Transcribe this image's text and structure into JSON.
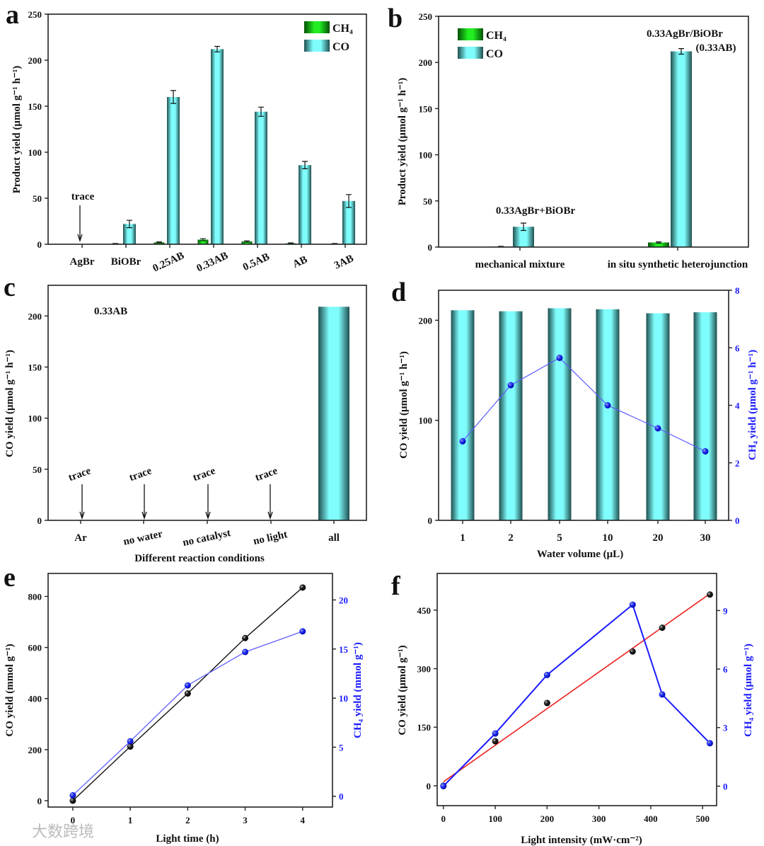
{
  "watermark": "大数跨境",
  "colors": {
    "co_bar": "#7ffcfc",
    "co_edge": "#1f4f4f",
    "ch4_bar": "#22dd22",
    "ch4_edge": "#055005",
    "blue": "#1a1aff",
    "fit": "#ee2222",
    "black": "#111111"
  },
  "chart_data": [
    {
      "panel": "a",
      "type": "bar",
      "categories": [
        "AgBr",
        "BiOBr",
        "0.25AB",
        "0.33AB",
        "0.5AB",
        "AB",
        "3AB"
      ],
      "series": [
        {
          "name": "CH4",
          "legend": "CH₄",
          "values": [
            0,
            0.5,
            2,
            5,
            3,
            1,
            0.5
          ],
          "errors": [
            0,
            0.3,
            0.5,
            1,
            0.7,
            0.5,
            0.3
          ]
        },
        {
          "name": "CO",
          "legend": "CO",
          "values": [
            0,
            22,
            160,
            212,
            144,
            86,
            47
          ],
          "errors": [
            0,
            4,
            7,
            3,
            5,
            4,
            7
          ]
        }
      ],
      "ylabel": "Product yield (μmol g⁻¹ h⁻¹)",
      "xlabel": "",
      "ylim": [
        0,
        250
      ],
      "yticks": [
        0,
        50,
        100,
        150,
        200,
        250
      ],
      "annotations": [
        "trace"
      ],
      "legend_position": "top-right"
    },
    {
      "panel": "b",
      "type": "bar",
      "categories": [
        "mechanical mixture",
        "in situ synthetic heterojunction"
      ],
      "series": [
        {
          "name": "CH4",
          "legend": "CH₄",
          "values": [
            0.5,
            5
          ],
          "errors": [
            0.3,
            0.7
          ]
        },
        {
          "name": "CO",
          "legend": "CO",
          "values": [
            22,
            212
          ],
          "errors": [
            4,
            3
          ]
        }
      ],
      "ylabel": "Product yield (μmol g⁻¹ h⁻¹)",
      "xlabel": "",
      "ylim": [
        0,
        250
      ],
      "yticks": [
        0,
        50,
        100,
        150,
        200,
        250
      ],
      "annotations": [
        "0.33AgBr+BiOBr",
        "0.33AgBr/BiOBr",
        "(0.33AB)"
      ],
      "legend_position": "top-left"
    },
    {
      "panel": "c",
      "type": "bar",
      "categories": [
        "Ar",
        "no water",
        "no catalyst",
        "no light",
        "all"
      ],
      "series": [
        {
          "name": "CO",
          "values": [
            0,
            0,
            0,
            0,
            209
          ]
        }
      ],
      "ylabel": "CO yield (μmol g⁻¹ h⁻¹)",
      "xlabel": "Different reaction conditions",
      "ylim": [
        0,
        230
      ],
      "yticks": [
        0,
        50,
        100,
        150,
        200
      ],
      "annotations": [
        "0.33AB",
        "trace",
        "trace",
        "trace",
        "trace"
      ]
    },
    {
      "panel": "d",
      "type": "bar",
      "categories": [
        "1",
        "2",
        "5",
        "10",
        "20",
        "30"
      ],
      "series": [
        {
          "name": "CO",
          "axis": "left",
          "type": "bar",
          "values": [
            210,
            209,
            212,
            211,
            207,
            208
          ]
        },
        {
          "name": "CH4",
          "axis": "right",
          "type": "line",
          "values": [
            2.75,
            4.7,
            5.65,
            4.0,
            3.2,
            2.4
          ]
        }
      ],
      "xlabel": "Water volume (μL)",
      "ylabel": "CO yield (μmol g⁻¹ h⁻¹)",
      "y2label": "CH₄ yield (μmol g⁻¹ h⁻¹)",
      "ylim": [
        0,
        230
      ],
      "yticks": [
        0,
        100,
        200
      ],
      "y2lim": [
        0,
        8
      ],
      "y2ticks": [
        0,
        2,
        4,
        6,
        8
      ]
    },
    {
      "panel": "e",
      "type": "line",
      "x": [
        0,
        1,
        2,
        3,
        4
      ],
      "series": [
        {
          "name": "CO",
          "axis": "left",
          "values": [
            0,
            212,
            420,
            637,
            835
          ]
        },
        {
          "name": "CH4",
          "axis": "right",
          "values": [
            0.1,
            5.6,
            11.3,
            14.7,
            16.8
          ]
        }
      ],
      "xlabel": "Light time (h)",
      "ylabel": "CO yield (mmol g⁻¹)",
      "y2label": "CH₄ yield (mmol g⁻¹)",
      "xlim": [
        -0.43,
        4.52
      ],
      "xticks": [
        0,
        1,
        2,
        3,
        4
      ],
      "ylim": [
        -25,
        890
      ],
      "yticks": [
        0,
        200,
        400,
        600,
        800
      ],
      "y2lim": [
        -1.1,
        22.7
      ],
      "y2ticks": [
        0,
        5,
        10,
        15,
        20
      ]
    },
    {
      "panel": "f",
      "type": "line",
      "x": [
        0,
        100,
        200,
        365,
        422,
        514
      ],
      "series": [
        {
          "name": "CO",
          "axis": "left",
          "values": [
            0,
            114,
            212,
            344,
            405,
            490
          ],
          "fit": [
            [
              0,
              10
            ],
            [
              514,
              492
            ]
          ]
        },
        {
          "name": "CH4",
          "axis": "right",
          "values": [
            0,
            2.7,
            5.7,
            9.3,
            4.7,
            2.2
          ]
        }
      ],
      "xlabel": "Light intensity (mW·cm⁻²)",
      "ylabel": "CO yield  (μmol  g⁻¹)",
      "y2label": "CH₄ yield  (μmol  g⁻¹)",
      "xlim": [
        -12,
        527
      ],
      "xticks": [
        0,
        100,
        200,
        300,
        400,
        500
      ],
      "ylim": [
        -51,
        544
      ],
      "yticks": [
        0,
        150,
        300,
        450
      ],
      "y2lim": [
        -1.0,
        10.9
      ],
      "y2ticks": [
        0,
        3,
        6,
        9
      ]
    }
  ]
}
